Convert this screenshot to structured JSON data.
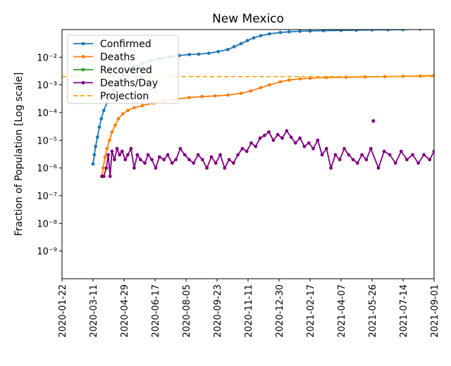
{
  "chart_data": {
    "type": "line",
    "title": "New Mexico",
    "xlabel": "",
    "ylabel": "Fraction of Population [Log scale]",
    "yscale": "log",
    "ylim": [
      1e-10,
      0.1
    ],
    "xlim": [
      "2020-01-22",
      "2021-09-01"
    ],
    "x_ticks": [
      "2020-01-22",
      "2020-03-11",
      "2020-04-29",
      "2020-06-17",
      "2020-08-05",
      "2020-09-23",
      "2020-11-11",
      "2020-12-30",
      "2021-02-17",
      "2021-04-07",
      "2021-05-26",
      "2021-07-14",
      "2021-09-01"
    ],
    "y_ticks": [
      {
        "value": 1e-09,
        "label": "10⁻⁹"
      },
      {
        "value": 1e-08,
        "label": "10⁻⁸"
      },
      {
        "value": 1e-07,
        "label": "10⁻⁷"
      },
      {
        "value": 1e-06,
        "label": "10⁻⁶"
      },
      {
        "value": 1e-05,
        "label": "10⁻⁵"
      },
      {
        "value": 0.0001,
        "label": "10⁻⁴"
      },
      {
        "value": 0.001,
        "label": "10⁻³"
      },
      {
        "value": 0.01,
        "label": "10⁻²"
      }
    ],
    "legend": {
      "placement": "upper-left",
      "entries": [
        "Confirmed",
        "Deaths",
        "Recovered",
        "Deaths/Day",
        "Projection"
      ]
    },
    "series": [
      {
        "name": "Confirmed",
        "color": "#1f77b4",
        "marker": "dot",
        "x": [
          "2020-03-11",
          "2020-03-13",
          "2020-03-15",
          "2020-03-18",
          "2020-03-21",
          "2020-03-24",
          "2020-03-28",
          "2020-04-02",
          "2020-04-07",
          "2020-04-12",
          "2020-04-17",
          "2020-04-22",
          "2020-04-27",
          "2020-05-05",
          "2020-05-15",
          "2020-05-28",
          "2020-06-10",
          "2020-06-25",
          "2020-07-10",
          "2020-07-25",
          "2020-08-10",
          "2020-08-25",
          "2020-09-10",
          "2020-09-25",
          "2020-10-10",
          "2020-10-20",
          "2020-10-31",
          "2020-11-10",
          "2020-11-20",
          "2020-12-01",
          "2020-12-15",
          "2021-01-01",
          "2021-01-15",
          "2021-02-01",
          "2021-02-17",
          "2021-03-10",
          "2021-04-07",
          "2021-05-01",
          "2021-05-26",
          "2021-06-20",
          "2021-07-14",
          "2021-08-10",
          "2021-09-01"
        ],
        "y": [
          1.4e-06,
          3e-06,
          6e-06,
          1.3e-05,
          3e-05,
          6e-05,
          0.00012,
          0.00023,
          0.0004,
          0.00065,
          0.00095,
          0.0015,
          0.0023,
          0.0034,
          0.0046,
          0.006,
          0.0075,
          0.009,
          0.0105,
          0.0115,
          0.0125,
          0.013,
          0.014,
          0.016,
          0.019,
          0.024,
          0.031,
          0.04,
          0.05,
          0.06,
          0.07,
          0.078,
          0.083,
          0.087,
          0.089,
          0.091,
          0.093,
          0.095,
          0.097,
          0.098,
          0.1,
          0.104,
          0.11
        ]
      },
      {
        "name": "Deaths",
        "color": "#ff7f0e",
        "marker": "dot",
        "x": [
          "2020-03-25",
          "2020-03-27",
          "2020-03-30",
          "2020-04-02",
          "2020-04-06",
          "2020-04-10",
          "2020-04-15",
          "2020-04-20",
          "2020-04-27",
          "2020-05-05",
          "2020-05-15",
          "2020-05-28",
          "2020-06-15",
          "2020-07-01",
          "2020-07-20",
          "2020-08-10",
          "2020-08-30",
          "2020-09-20",
          "2020-10-10",
          "2020-10-31",
          "2020-11-15",
          "2020-12-01",
          "2020-12-15",
          "2021-01-01",
          "2021-01-15",
          "2021-02-01",
          "2021-02-17",
          "2021-03-15",
          "2021-04-15",
          "2021-05-15",
          "2021-06-15",
          "2021-07-14",
          "2021-08-10",
          "2021-09-01"
        ],
        "y": [
          5e-07,
          1e-06,
          2.5e-06,
          5e-06,
          1e-05,
          2e-05,
          3.5e-05,
          6e-05,
          9e-05,
          0.00012,
          0.00015,
          0.00018,
          0.00022,
          0.00026,
          0.00031,
          0.00035,
          0.00038,
          0.0004,
          0.00043,
          0.0005,
          0.0006,
          0.0008,
          0.001,
          0.0013,
          0.0015,
          0.00165,
          0.00175,
          0.00185,
          0.0019,
          0.00195,
          0.002,
          0.00205,
          0.0021,
          0.0022
        ]
      },
      {
        "name": "Recovered",
        "color": "#2ca02c",
        "marker": "dot",
        "x": [],
        "y": []
      },
      {
        "name": "Deaths/Day",
        "color": "#800080",
        "marker": "dot",
        "x": [
          "2020-03-25",
          "2020-03-28",
          "2020-04-01",
          "2020-04-04",
          "2020-04-07",
          "2020-04-10",
          "2020-04-14",
          "2020-04-18",
          "2020-04-22",
          "2020-04-26",
          "2020-05-01",
          "2020-05-05",
          "2020-05-10",
          "2020-05-15",
          "2020-05-20",
          "2020-05-25",
          "2020-06-01",
          "2020-06-06",
          "2020-06-12",
          "2020-06-18",
          "2020-06-24",
          "2020-07-01",
          "2020-07-07",
          "2020-07-14",
          "2020-07-20",
          "2020-07-27",
          "2020-08-03",
          "2020-08-10",
          "2020-08-17",
          "2020-08-24",
          "2020-08-31",
          "2020-09-07",
          "2020-09-14",
          "2020-09-21",
          "2020-09-28",
          "2020-10-05",
          "2020-10-12",
          "2020-10-19",
          "2020-10-26",
          "2020-11-02",
          "2020-11-09",
          "2020-11-16",
          "2020-11-23",
          "2020-11-30",
          "2020-12-07",
          "2020-12-14",
          "2020-12-21",
          "2020-12-28",
          "2021-01-04",
          "2021-01-11",
          "2021-01-18",
          "2021-01-25",
          "2021-02-01",
          "2021-02-08",
          "2021-02-15",
          "2021-02-22",
          "2021-03-01",
          "2021-03-08",
          "2021-03-15",
          "2021-03-22",
          "2021-03-29",
          "2021-04-05",
          "2021-04-12",
          "2021-04-19",
          "2021-04-26",
          "2021-05-03",
          "2021-05-10",
          "2021-05-17",
          "2021-05-24",
          "2021-06-05",
          "2021-06-14",
          "2021-06-23",
          "2021-07-02",
          "2021-07-11",
          "2021-07-20",
          "2021-07-29",
          "2021-08-07",
          "2021-08-16",
          "2021-08-25",
          "2021-09-01"
        ],
        "y": [
          5e-07,
          5e-07,
          1e-06,
          3e-06,
          5e-07,
          4e-06,
          2e-06,
          5e-06,
          3e-06,
          4e-06,
          2e-06,
          3e-06,
          5e-06,
          1e-06,
          3e-06,
          2e-06,
          1.5e-06,
          3e-06,
          2e-06,
          1e-06,
          2.5e-06,
          2e-06,
          3e-06,
          1.5e-06,
          2e-06,
          5e-06,
          3e-06,
          2e-06,
          1.5e-06,
          3e-06,
          2e-06,
          1e-06,
          2.5e-06,
          1.5e-06,
          3e-06,
          1e-06,
          2e-06,
          1.5e-06,
          3e-06,
          5e-06,
          4e-06,
          8e-06,
          6e-06,
          1.2e-05,
          1.5e-05,
          2e-05,
          1e-05,
          1.6e-05,
          1.2e-05,
          2.2e-05,
          1.3e-05,
          8e-06,
          1.2e-05,
          6e-06,
          8e-06,
          5e-06,
          1e-05,
          3e-06,
          5e-06,
          1e-06,
          3e-06,
          2e-06,
          5e-06,
          3e-06,
          2e-06,
          1.5e-06,
          3e-06,
          2e-06,
          5e-06,
          1e-06,
          4e-06,
          3e-06,
          1.5e-06,
          4e-06,
          2e-06,
          3e-06,
          1.5e-06,
          3e-06,
          2e-06,
          4e-06
        ]
      },
      {
        "name": "Projection",
        "color": "#ffa500",
        "style": "dashed",
        "x": [
          "2020-01-22",
          "2021-09-01"
        ],
        "y": [
          0.002,
          0.002
        ]
      }
    ],
    "annotations": [
      {
        "x": "2021-05-28",
        "y": 5e-05,
        "color": "#800080",
        "kind": "isolated point"
      }
    ],
    "grid": false
  }
}
